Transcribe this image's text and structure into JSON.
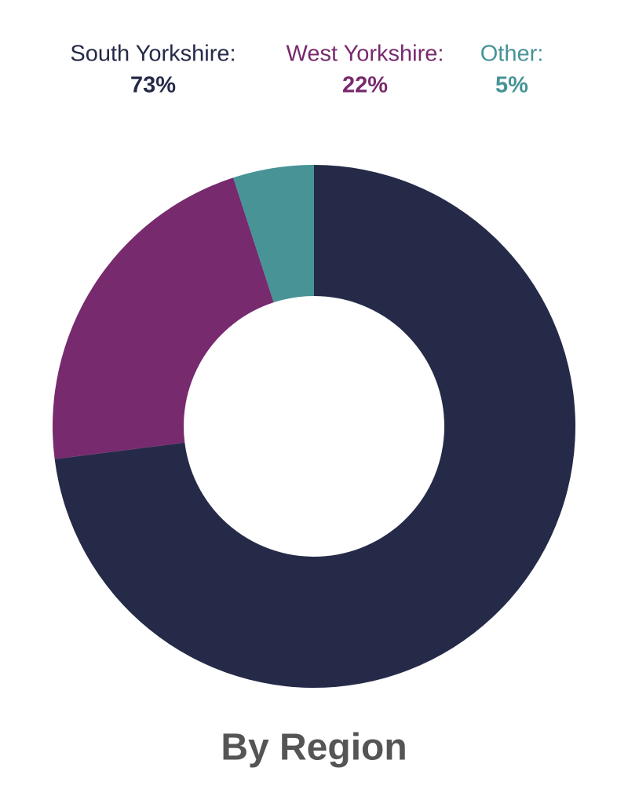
{
  "chart_data": {
    "type": "donut",
    "title": "By Region",
    "categories": [
      "South Yorkshire:",
      "West Yorkshire:",
      "Other:"
    ],
    "values": [
      73,
      22,
      5
    ],
    "value_labels": [
      "73%",
      "22%",
      "5%"
    ],
    "colors": [
      "#252a48",
      "#772a6e",
      "#479396"
    ]
  }
}
